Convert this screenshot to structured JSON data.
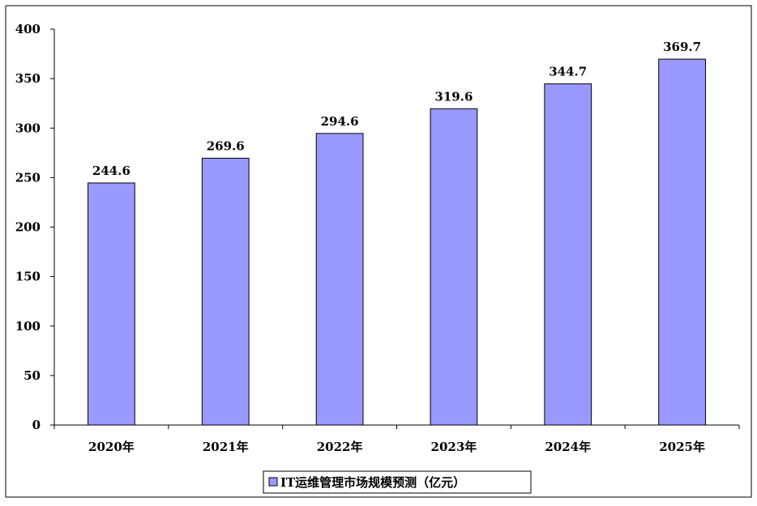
{
  "chart_data": {
    "type": "bar",
    "categories": [
      "2020年",
      "2021年",
      "2022年",
      "2023年",
      "2024年",
      "2025年"
    ],
    "series": [
      {
        "name": "IT运维管理市场规模预测（亿元）",
        "values": [
          244.6,
          269.6,
          294.6,
          319.6,
          344.7,
          369.7
        ],
        "labels": [
          "244.6",
          "269.6",
          "294.6",
          "319.6",
          "344.7",
          "369.7"
        ],
        "color": "#9999ff"
      }
    ],
    "title": "",
    "xlabel": "",
    "ylabel": "",
    "ylim": [
      0,
      400
    ],
    "yticks": [
      "0",
      "50",
      "100",
      "150",
      "200",
      "250",
      "300",
      "350",
      "400"
    ],
    "grid": false,
    "legend_position": "bottom-center"
  }
}
